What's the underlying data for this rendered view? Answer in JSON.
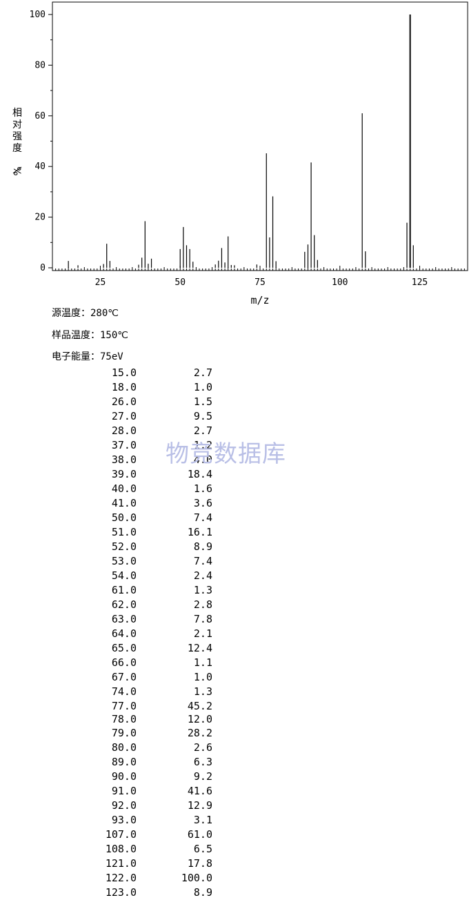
{
  "chart_data": {
    "type": "bar",
    "xlabel": "m/z",
    "ylabel": "相对强度/%",
    "xlim": [
      10,
      140
    ],
    "ylim": [
      0,
      100
    ],
    "xticks": [
      25,
      50,
      75,
      100,
      125
    ],
    "yticks": [
      0,
      20,
      40,
      60,
      80,
      100
    ],
    "grid": false,
    "x": [
      15,
      18,
      26,
      27,
      28,
      37,
      38,
      39,
      40,
      41,
      50,
      51,
      52,
      53,
      54,
      61,
      62,
      63,
      64,
      65,
      66,
      67,
      74,
      77,
      78,
      79,
      80,
      89,
      90,
      91,
      92,
      93,
      107,
      108,
      121,
      122,
      123
    ],
    "values": [
      2.7,
      1.0,
      1.5,
      9.5,
      2.7,
      1.2,
      4.0,
      18.4,
      1.6,
      3.6,
      7.4,
      16.1,
      8.9,
      7.4,
      2.4,
      1.3,
      2.8,
      7.8,
      2.1,
      12.4,
      1.1,
      1.0,
      1.3,
      45.2,
      12.0,
      28.2,
      2.6,
      6.3,
      9.2,
      41.6,
      12.9,
      3.1,
      61.0,
      6.5,
      17.8,
      100.0,
      8.9
    ]
  },
  "conditions": {
    "source_temp": {
      "label": "源温度：",
      "value": "280℃"
    },
    "sample_temp": {
      "label": "样品温度：",
      "value": "150℃"
    },
    "electron_energy": {
      "label": "电子能量：",
      "value": "75eV"
    }
  },
  "peaks": [
    [
      "15.0",
      "2.7"
    ],
    [
      "18.0",
      "1.0"
    ],
    [
      "26.0",
      "1.5"
    ],
    [
      "27.0",
      "9.5"
    ],
    [
      "28.0",
      "2.7"
    ],
    [
      "37.0",
      "1.2"
    ],
    [
      "38.0",
      "4.0"
    ],
    [
      "39.0",
      "18.4"
    ],
    [
      "40.0",
      "1.6"
    ],
    [
      "41.0",
      "3.6"
    ],
    [
      "50.0",
      "7.4"
    ],
    [
      "51.0",
      "16.1"
    ],
    [
      "52.0",
      "8.9"
    ],
    [
      "53.0",
      "7.4"
    ],
    [
      "54.0",
      "2.4"
    ],
    [
      "61.0",
      "1.3"
    ],
    [
      "62.0",
      "2.8"
    ],
    [
      "63.0",
      "7.8"
    ],
    [
      "64.0",
      "2.1"
    ],
    [
      "65.0",
      "12.4"
    ],
    [
      "66.0",
      "1.1"
    ],
    [
      "67.0",
      "1.0"
    ],
    [
      "74.0",
      "1.3"
    ],
    [
      "77.0",
      "45.2"
    ],
    [
      "78.0",
      "12.0"
    ],
    [
      "79.0",
      "28.2"
    ],
    [
      "80.0",
      "2.6"
    ],
    [
      "89.0",
      "6.3"
    ],
    [
      "90.0",
      "9.2"
    ],
    [
      "91.0",
      "41.6"
    ],
    [
      "92.0",
      "12.9"
    ],
    [
      "93.0",
      "3.1"
    ],
    [
      "107.0",
      "61.0"
    ],
    [
      "108.0",
      "6.5"
    ],
    [
      "121.0",
      "17.8"
    ],
    [
      "122.0",
      "100.0"
    ],
    [
      "123.0",
      "8.9"
    ]
  ],
  "watermark": "物竞数据库"
}
